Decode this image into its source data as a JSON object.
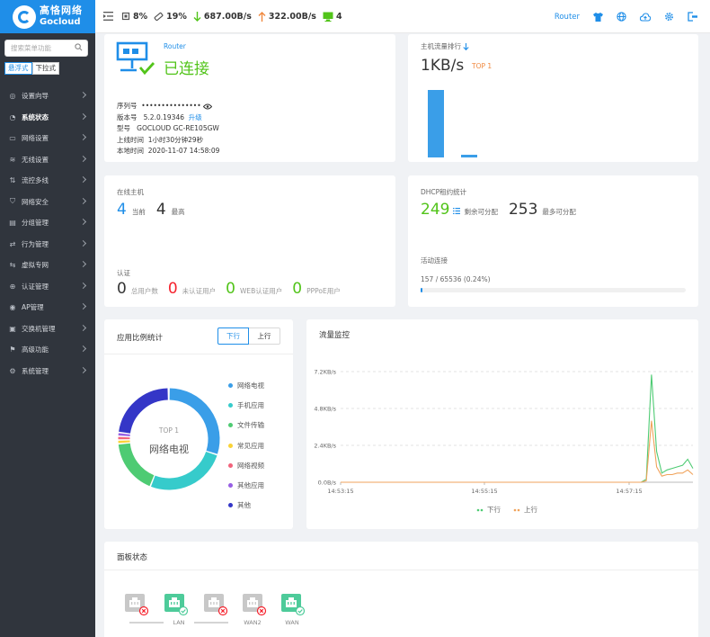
{
  "brand": {
    "name_cn": "高恪网络",
    "name_en": "Gocloud"
  },
  "search": {
    "placeholder": "搜索菜单功能"
  },
  "menu_modes": [
    "悬浮式",
    "下拉式"
  ],
  "menu": [
    {
      "label": "设置向导",
      "icon": "compass-icon"
    },
    {
      "label": "系统状态",
      "icon": "gauge-icon",
      "active": true
    },
    {
      "label": "网络设置",
      "icon": "monitor-icon"
    },
    {
      "label": "无线设置",
      "icon": "wifi-icon"
    },
    {
      "label": "流控多线",
      "icon": "flow-icon"
    },
    {
      "label": "网络安全",
      "icon": "shield-icon"
    },
    {
      "label": "分组管理",
      "icon": "group-icon"
    },
    {
      "label": "行为管理",
      "icon": "behavior-icon"
    },
    {
      "label": "虚拟专网",
      "icon": "vpn-icon"
    },
    {
      "label": "认证管理",
      "icon": "auth-icon"
    },
    {
      "label": "AP管理",
      "icon": "ap-icon"
    },
    {
      "label": "交换机管理",
      "icon": "switch-icon"
    },
    {
      "label": "高级功能",
      "icon": "advanced-icon"
    },
    {
      "label": "系统管理",
      "icon": "gear-icon"
    }
  ],
  "topbar": {
    "cpu": "8%",
    "mem": "19%",
    "down": "687.00B/s",
    "up": "322.00B/s",
    "clients": "4",
    "router": "Router"
  },
  "device": {
    "mode": "Router",
    "status": "已连接",
    "rows": [
      {
        "label": "序列号",
        "value": "•••••••••••••••"
      },
      {
        "label": "版本号",
        "value": "5.2.0.19346",
        "link": "升级"
      },
      {
        "label": "型号",
        "value": "GOCLOUD GC-RE105GW"
      },
      {
        "label": "上线时间",
        "value": "1小时30分钟29秒"
      },
      {
        "label": "本地时间",
        "value": "2020-11-07 14:58:09"
      }
    ]
  },
  "host_traffic": {
    "title": "主机流量排行",
    "value": "1KB/s",
    "badge": "TOP 1",
    "bars": [
      1.0,
      0.04
    ]
  },
  "online": {
    "title": "在线主机",
    "current": "4",
    "current_label": "当前",
    "max": "4",
    "max_label": "最高"
  },
  "auth": {
    "title": "认证",
    "items": [
      {
        "value": "0",
        "label": "总用户数",
        "color": "#333"
      },
      {
        "value": "0",
        "label": "未认证用户",
        "color": "#f5222d"
      },
      {
        "value": "0",
        "label": "WEB认证用户",
        "color": "#52c41a"
      },
      {
        "value": "0",
        "label": "PPPoE用户",
        "color": "#52c41a"
      }
    ]
  },
  "dhcp": {
    "title": "DHCP租约统计",
    "remaining": "249",
    "remaining_label": "剩余可分配",
    "max": "253",
    "max_label": "最多可分配"
  },
  "connections": {
    "title": "活动连接",
    "text": "157 / 65536 (0.24%)",
    "fraction": 0.0024
  },
  "app_ratio": {
    "title": "应用比例统计",
    "tabs": [
      "下行",
      "上行"
    ],
    "center_top": "TOP 1",
    "center_label": "网络电视",
    "legend": [
      {
        "name": "网络电视",
        "color": "#3a9ee8"
      },
      {
        "name": "手机应用",
        "color": "#36cbcb"
      },
      {
        "name": "文件传输",
        "color": "#4ecb73"
      },
      {
        "name": "常见应用",
        "color": "#fad337"
      },
      {
        "name": "网络视频",
        "color": "#f2637b"
      },
      {
        "name": "其他应用",
        "color": "#975fe4"
      },
      {
        "name": "其他",
        "color": "#3436c7"
      }
    ]
  },
  "traffic_monitor": {
    "title": "流量监控",
    "legend": [
      "下行",
      "上行"
    ]
  },
  "chart_data": {
    "type": "line",
    "ylabels": [
      "7.2KB/s",
      "4.8KB/s",
      "2.4KB/s",
      "0.0B/s"
    ],
    "yvalues": [
      7.2,
      4.8,
      2.4,
      0
    ],
    "xlabels": [
      "14:53:15",
      "14:55:15",
      "14:57:15"
    ],
    "ylim": [
      0,
      7.2
    ],
    "series": [
      {
        "name": "下行",
        "color": "#4ecb73",
        "values": [
          0,
          0,
          0,
          0,
          0,
          0,
          0,
          0,
          0,
          0,
          0,
          0,
          0,
          0,
          0,
          0,
          0,
          0,
          0,
          0,
          0,
          0,
          0,
          0,
          0,
          0,
          0,
          0,
          0,
          0,
          0,
          0,
          0,
          0,
          0,
          0,
          0,
          0,
          0,
          0,
          0,
          0,
          0,
          0,
          0,
          0,
          0,
          0,
          0,
          0,
          0,
          0,
          0,
          0,
          0,
          0,
          0,
          0,
          0,
          0.2,
          7.0,
          2.0,
          0.6,
          0.8,
          0.9,
          1.0,
          1.1,
          1.5,
          0.9
        ]
      },
      {
        "name": "上行",
        "color": "#f0a35b",
        "values": [
          0,
          0,
          0,
          0,
          0,
          0,
          0,
          0,
          0,
          0,
          0,
          0,
          0,
          0,
          0,
          0,
          0,
          0,
          0,
          0,
          0,
          0,
          0,
          0,
          0,
          0,
          0,
          0,
          0,
          0,
          0,
          0,
          0,
          0,
          0,
          0,
          0,
          0,
          0,
          0,
          0,
          0,
          0,
          0,
          0,
          0,
          0,
          0,
          0,
          0,
          0,
          0,
          0,
          0,
          0,
          0,
          0,
          0,
          0,
          0.1,
          4.0,
          1.0,
          0.4,
          0.5,
          0.5,
          0.6,
          0.6,
          0.8,
          0.5
        ]
      }
    ]
  },
  "panel": {
    "title": "面板状态",
    "ports": [
      {
        "label": "",
        "status": "down"
      },
      {
        "label": "",
        "status": "up"
      },
      {
        "label": "",
        "status": "down"
      },
      {
        "label": "",
        "status": "down"
      },
      {
        "label": "",
        "status": "up"
      }
    ],
    "groups": [
      "LAN",
      "WAN2",
      "WAN"
    ]
  }
}
